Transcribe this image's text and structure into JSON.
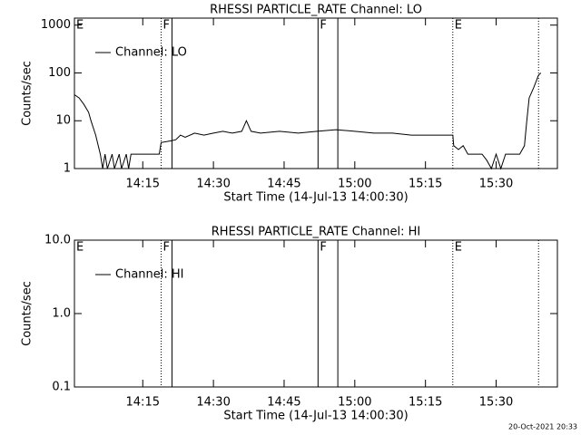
{
  "chart_data": [
    {
      "type": "line",
      "title": "RHESSI PARTICLE_RATE Channel: LO",
      "xlabel": "Start Time (14-Jul-13 14:00:30)",
      "ylabel": "Counts/sec",
      "log_y": true,
      "xlim": [
        0.5,
        103
      ],
      "ylim": [
        1,
        1400
      ],
      "xticks": [
        {
          "value": 15,
          "label": "14:15"
        },
        {
          "value": 30,
          "label": "14:30"
        },
        {
          "value": 45,
          "label": "14:45"
        },
        {
          "value": 60,
          "label": "15:00"
        },
        {
          "value": 75,
          "label": "15:15"
        },
        {
          "value": 90,
          "label": "15:30"
        }
      ],
      "yticks": [
        1,
        10,
        100,
        1000
      ],
      "events": [
        {
          "x": 18.9,
          "style": "dotted"
        },
        {
          "x": 21.2,
          "style": "solid"
        },
        {
          "x": 52.2,
          "style": "solid"
        },
        {
          "x": 56.4,
          "style": "solid"
        },
        {
          "x": 80.8,
          "style": "dotted"
        },
        {
          "x": 99.0,
          "style": "dotted"
        }
      ],
      "event_labels": [
        {
          "x": 0.5,
          "text": "E"
        },
        {
          "x": 18.9,
          "text": "F"
        },
        {
          "x": 52.2,
          "text": "F"
        },
        {
          "x": 80.8,
          "text": "E"
        }
      ],
      "series": [
        {
          "name": "Channel: LO",
          "color": "#000000",
          "x": [
            0.5,
            1.5,
            2.5,
            3.5,
            4,
            5,
            6,
            6.5,
            7,
            7.5,
            8.5,
            9,
            10,
            10.5,
            11.5,
            12,
            12.5,
            13.5,
            18.5,
            18.9,
            21,
            22,
            23,
            24,
            26,
            28,
            30,
            32,
            34,
            36,
            37,
            38,
            40,
            44,
            48,
            52,
            56,
            60,
            64,
            68,
            72,
            76,
            79,
            80.8,
            81,
            82,
            83,
            84,
            87,
            88,
            89,
            90,
            91,
            92,
            95,
            96,
            96.5,
            97,
            98,
            99,
            99.5
          ],
          "values": [
            35,
            30,
            22,
            15,
            10,
            5,
            2,
            1,
            2,
            1,
            2,
            1,
            2,
            1,
            2,
            1,
            2,
            2,
            2,
            3.5,
            3.8,
            4,
            5,
            4.5,
            5.5,
            5,
            5.5,
            6,
            5.5,
            6,
            10,
            6,
            5.5,
            6,
            5.5,
            6,
            6.5,
            6,
            5.5,
            5.5,
            5,
            5,
            5,
            5,
            3,
            2.5,
            3,
            2,
            2,
            1.5,
            1,
            2,
            1,
            2,
            2,
            3,
            10,
            30,
            50,
            90,
            100
          ]
        }
      ]
    },
    {
      "type": "line",
      "title": "RHESSI PARTICLE_RATE Channel: HI",
      "xlabel": "Start Time (14-Jul-13 14:00:30)",
      "ylabel": "Counts/sec",
      "log_y": true,
      "xlim": [
        0.5,
        103
      ],
      "ylim": [
        0.1,
        10
      ],
      "xticks": [
        {
          "value": 15,
          "label": "14:15"
        },
        {
          "value": 30,
          "label": "14:30"
        },
        {
          "value": 45,
          "label": "14:45"
        },
        {
          "value": 60,
          "label": "15:00"
        },
        {
          "value": 75,
          "label": "15:15"
        },
        {
          "value": 90,
          "label": "15:30"
        }
      ],
      "yticks": [
        0.1,
        {
          "value": 1,
          "label": "1.0"
        },
        {
          "value": 10,
          "label": "10.0"
        }
      ],
      "events": [
        {
          "x": 18.9,
          "style": "dotted"
        },
        {
          "x": 21.2,
          "style": "solid"
        },
        {
          "x": 52.2,
          "style": "solid"
        },
        {
          "x": 56.4,
          "style": "solid"
        },
        {
          "x": 80.8,
          "style": "dotted"
        },
        {
          "x": 99.0,
          "style": "dotted"
        }
      ],
      "event_labels": [
        {
          "x": 0.5,
          "text": "E"
        },
        {
          "x": 18.9,
          "text": "F"
        },
        {
          "x": 52.2,
          "text": "F"
        },
        {
          "x": 80.8,
          "text": "E"
        }
      ],
      "series": [
        {
          "name": "Channel: HI",
          "color": "#000000",
          "x": [],
          "values": []
        }
      ]
    }
  ],
  "footer": "20-Oct-2021 20:33"
}
